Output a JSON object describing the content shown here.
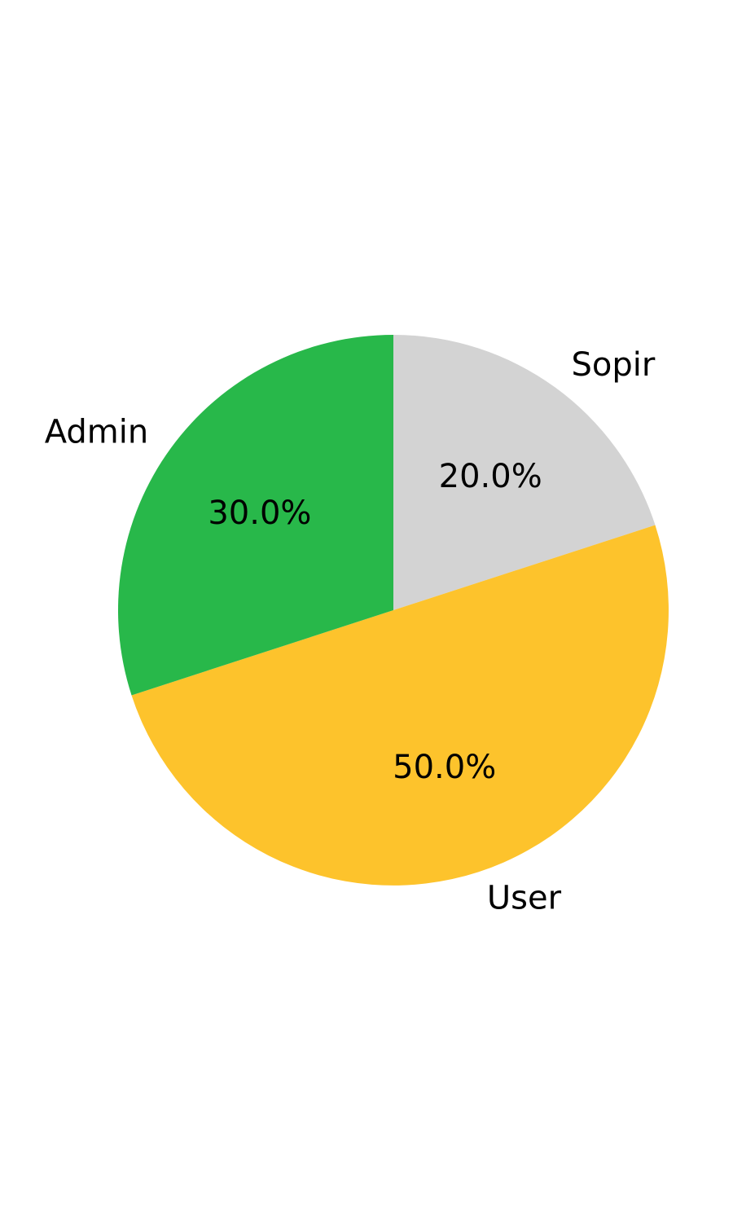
{
  "chart_data": {
    "type": "pie",
    "slices": [
      {
        "label": "Sopir",
        "value": 20,
        "pct_text": "20.0%",
        "color": "#d3d3d3"
      },
      {
        "label": "User",
        "value": 50,
        "pct_text": "50.0%",
        "color": "#fdc32c"
      },
      {
        "label": "Admin",
        "value": 30,
        "pct_text": "30.0%",
        "color": "#28b84a"
      }
    ],
    "start_angle_deg": 90,
    "direction": "clockwise"
  }
}
